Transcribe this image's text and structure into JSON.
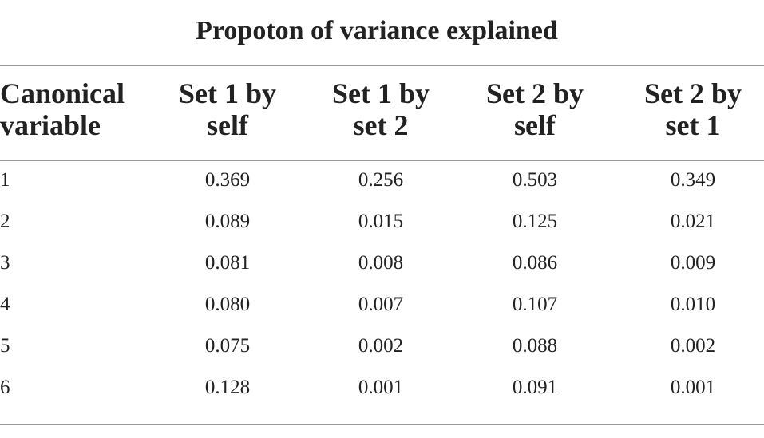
{
  "table": {
    "title": "Propoton of variance explained",
    "header": [
      "Canonical\nvariable",
      "Set 1 by\nself",
      "Set 1 by\nset 2",
      "Set 2 by\nself",
      "Set 2 by\nset 1"
    ],
    "rows": [
      [
        "1",
        "0.369",
        "0.256",
        "0.503",
        "0.349"
      ],
      [
        "2",
        "0.089",
        "0.015",
        "0.125",
        "0.021"
      ],
      [
        "3",
        "0.081",
        "0.008",
        "0.086",
        "0.009"
      ],
      [
        "4",
        "0.080",
        "0.007",
        "0.107",
        "0.010"
      ],
      [
        "5",
        "0.075",
        "0.002",
        "0.088",
        "0.002"
      ],
      [
        "6",
        "0.128",
        "0.001",
        "0.091",
        "0.001"
      ]
    ]
  }
}
